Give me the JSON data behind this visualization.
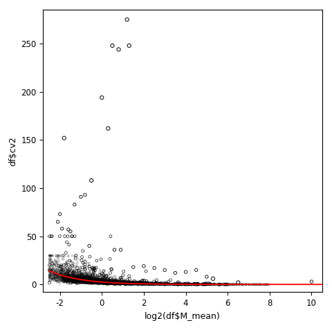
{
  "xlabel": "log2(df$M_mean)",
  "ylabel": "df$cv2",
  "xlim": [
    -2.8,
    10.5
  ],
  "ylim": [
    -8,
    285
  ],
  "xticks": [
    -2,
    0,
    2,
    4,
    6,
    8,
    10
  ],
  "yticks": [
    0,
    50,
    100,
    150,
    200,
    250
  ],
  "scatter_color": "black",
  "line_color": "red",
  "background_color": "white",
  "seed": 42,
  "cv2_fit_a": 2.5,
  "cv2_fit_b": 0.02,
  "outliers_x": [
    -1.8,
    -0.5,
    0.0,
    0.3,
    0.5,
    0.8,
    1.2,
    1.3,
    5.3,
    6.5
  ],
  "outliers_y": [
    152,
    108,
    194,
    162,
    248,
    244,
    275,
    248,
    6,
    2
  ],
  "extra_outliers_x": [
    -2.1,
    -2.0,
    -1.9,
    -1.6,
    -1.5,
    -1.3,
    -1.0,
    -0.8,
    -0.6,
    0.6,
    0.9,
    1.5,
    2.0,
    2.5,
    3.0,
    3.5,
    4.0,
    4.5,
    5.0,
    10.0
  ],
  "extra_outliers_y": [
    65,
    73,
    58,
    57,
    55,
    83,
    91,
    93,
    40,
    36,
    36,
    18,
    19,
    17,
    15,
    12,
    13,
    15,
    8,
    3
  ]
}
